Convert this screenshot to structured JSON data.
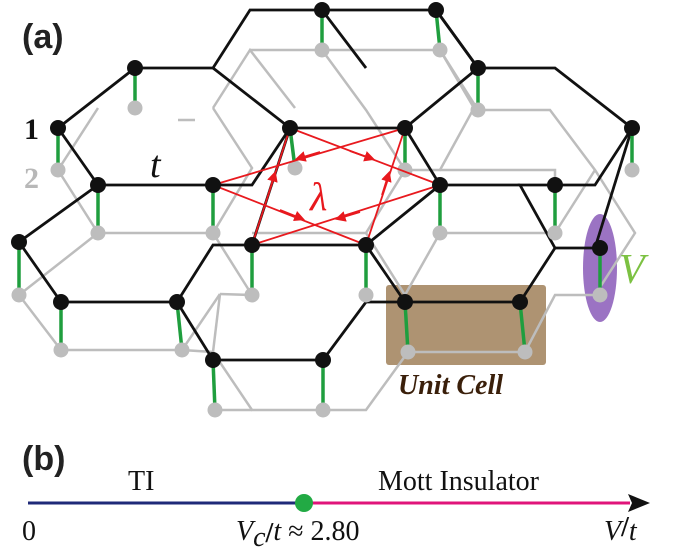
{
  "panels": {
    "a_label": "(a)",
    "b_label": "(b)"
  },
  "lattice": {
    "layer_top_label": "1",
    "layer_bottom_label": "2",
    "hopping_label": "t",
    "soc_label": "λ",
    "interlayer_label": "V",
    "unit_cell_label": "Unit Cell"
  },
  "phase_line": {
    "left_phase": "TI",
    "right_phase": "Mott Insulator",
    "origin_label": "0",
    "critical_math": "V",
    "critical_sub": "c",
    "critical_mid": "/",
    "critical_t": "t",
    "critical_value": " ≈ 2.80",
    "axis_math": "V",
    "axis_mid": "/",
    "axis_t": "t",
    "critical_fraction": 0.455
  },
  "colors": {
    "top_layer": "#111111",
    "bottom_layer": "#bdbdbd",
    "interlayer_bond": "#1f9e3e",
    "soc_arrow": "#e8191e",
    "unit_cell": "#8f6a3c",
    "interlayer_ellipse": "#8a5bb8",
    "ti_segment": "#1f2a78",
    "mott_segment": "#e0147a",
    "critical_point": "#22aa44"
  }
}
